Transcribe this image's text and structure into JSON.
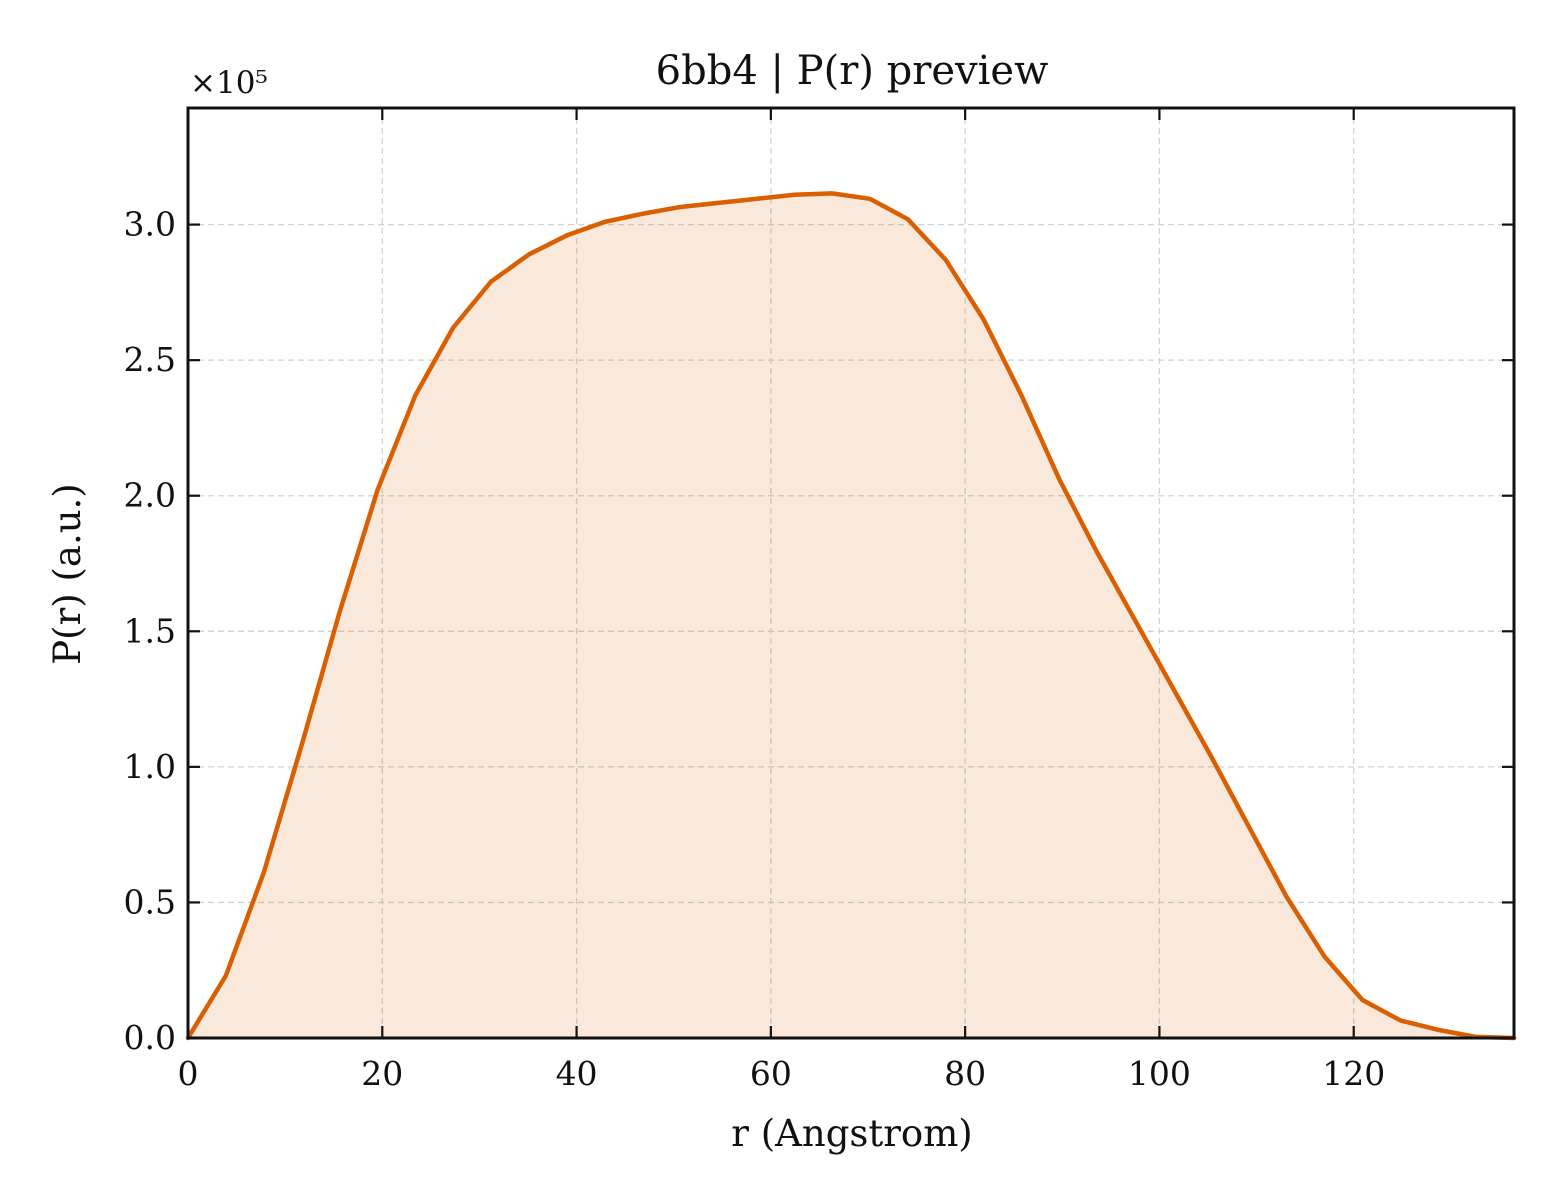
{
  "chart_data": {
    "type": "area",
    "title": "6bb4 | P(r) preview",
    "xlabel": "r (Angstrom)",
    "ylabel": "P(r) (a.u.)",
    "y_offset_label": "×10⁵",
    "xlim": [
      0,
      136.5
    ],
    "ylim": [
      0,
      3.43
    ],
    "x_ticks": [
      0,
      20,
      40,
      60,
      80,
      100,
      120
    ],
    "x_tick_labels": [
      "0",
      "20",
      "40",
      "60",
      "80",
      "100",
      "120"
    ],
    "y_ticks": [
      0.0,
      0.5,
      1.0,
      1.5,
      2.0,
      2.5,
      3.0
    ],
    "y_tick_labels": [
      "0.0",
      "0.5",
      "1.0",
      "1.5",
      "2.0",
      "2.5",
      "3.0"
    ],
    "grid": true,
    "ticks_direction": "in",
    "series": [
      {
        "color": "#d95f02",
        "fill_color": "#d95f02",
        "fill_opacity": 0.14,
        "x": [
          0,
          3.9,
          7.8,
          11.7,
          15.6,
          19.5,
          23.4,
          27.3,
          31.2,
          35.1,
          39.0,
          42.9,
          46.8,
          50.7,
          54.6,
          58.5,
          62.4,
          66.3,
          70.2,
          74.1,
          78.0,
          81.9,
          85.8,
          89.7,
          93.6,
          97.5,
          101.4,
          105.3,
          109.2,
          113.1,
          117.0,
          120.9,
          124.8,
          128.7,
          132.6,
          136.5
        ],
        "y": [
          0.0,
          0.23,
          0.61,
          1.08,
          1.57,
          2.02,
          2.37,
          2.62,
          2.79,
          2.89,
          2.96,
          3.01,
          3.04,
          3.065,
          3.08,
          3.095,
          3.11,
          3.115,
          3.095,
          3.02,
          2.87,
          2.65,
          2.37,
          2.06,
          1.79,
          1.54,
          1.29,
          1.04,
          0.78,
          0.52,
          0.3,
          0.14,
          0.065,
          0.03,
          0.004,
          0.0
        ]
      }
    ]
  }
}
